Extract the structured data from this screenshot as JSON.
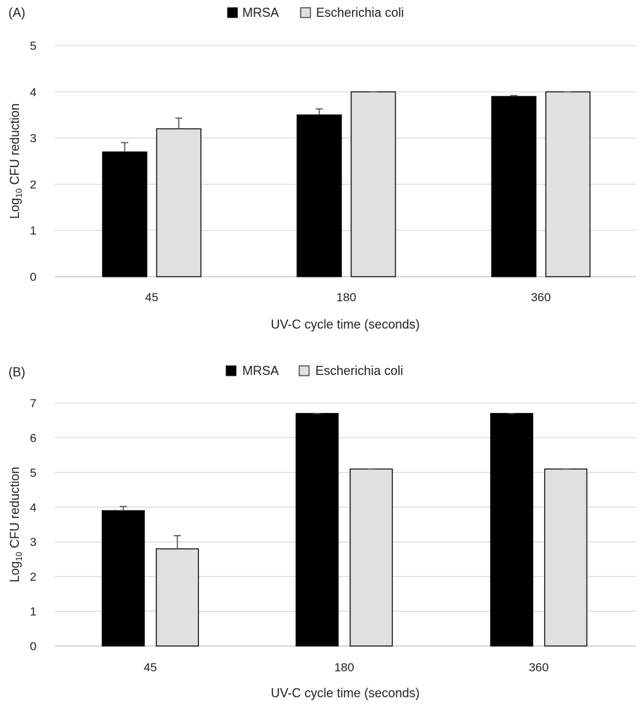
{
  "chart_data": [
    {
      "type": "bar",
      "panel_label": "(A)",
      "categories": [
        "45",
        "180",
        "360"
      ],
      "series": [
        {
          "name": "MRSA",
          "values": [
            2.7,
            3.5,
            3.9
          ],
          "errors": [
            0.2,
            0.13,
            0.02
          ],
          "color": "#000000"
        },
        {
          "name": "Escherichia coli",
          "values": [
            3.2,
            4.0,
            4.0
          ],
          "errors": [
            0.23,
            0.0,
            0.0
          ],
          "color": "#e0e0e0"
        }
      ],
      "ylim": [
        0,
        5
      ],
      "yticks": [
        "0",
        "1",
        "2",
        "3",
        "4",
        "5"
      ],
      "xlabel": "UV-C cycle time (seconds)",
      "ylabel": {
        "base": "Log",
        "sub": "10",
        "rest": " CFU reduction"
      },
      "grid": true,
      "legend": "top-center"
    },
    {
      "type": "bar",
      "panel_label": "(B)",
      "categories": [
        "45",
        "180",
        "360"
      ],
      "series": [
        {
          "name": "MRSA",
          "values": [
            3.9,
            6.7,
            6.7
          ],
          "errors": [
            0.12,
            0.0,
            0.0
          ],
          "color": "#000000"
        },
        {
          "name": "Escherichia coli",
          "values": [
            2.8,
            5.1,
            5.1
          ],
          "errors": [
            0.38,
            0.0,
            0.0
          ],
          "color": "#e0e0e0"
        }
      ],
      "ylim": [
        0,
        7
      ],
      "yticks": [
        "0",
        "1",
        "2",
        "3",
        "4",
        "5",
        "6",
        "7"
      ],
      "xlabel": "UV-C cycle time (seconds)",
      "ylabel": {
        "base": "Log",
        "sub": "10",
        "rest": " CFU reduction"
      },
      "grid": true,
      "legend": "top-center"
    }
  ]
}
